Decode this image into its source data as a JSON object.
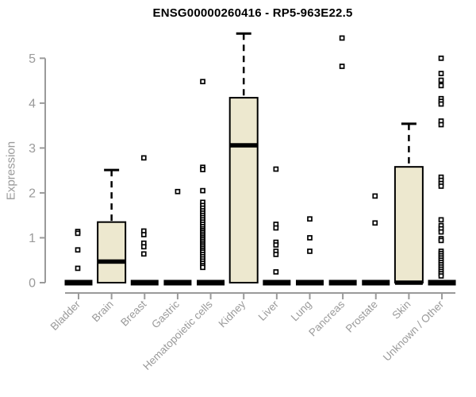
{
  "chart_data": {
    "type": "boxplot",
    "title": "ENSG00000260416 - RP5-963E22.5",
    "ylabel": "Expression",
    "ylim": [
      0,
      5.7
    ],
    "yticks": [
      0,
      1,
      2,
      3,
      4,
      5
    ],
    "grid": false,
    "legend": null,
    "categories": [
      "Bladder",
      "Brain",
      "Breast",
      "Gastric",
      "Hematopoietic cells",
      "Kidney",
      "Liver",
      "Lung",
      "Pancreas",
      "Prostate",
      "Skin",
      "Unknown / Other"
    ],
    "boxes": [
      {
        "category": "Bladder",
        "collapsed": true,
        "median": 0,
        "point_dx": -1,
        "points": [
          1.14,
          1.1,
          0.73,
          0.32
        ]
      },
      {
        "category": "Brain",
        "collapsed": false,
        "q1": 0,
        "median": 0.47,
        "q3": 1.35,
        "whisker_high": 2.51,
        "whisker_low": 0,
        "point_dx": 0,
        "points": []
      },
      {
        "category": "Breast",
        "collapsed": true,
        "median": 0,
        "point_dx": -1,
        "points": [
          2.78,
          1.15,
          1.07,
          0.88,
          0.8,
          0.64
        ]
      },
      {
        "category": "Gastric",
        "collapsed": true,
        "median": 0,
        "point_dx": 0,
        "points": [
          2.03
        ]
      },
      {
        "category": "Hematopoietic cells",
        "collapsed": true,
        "median": 0,
        "point_dx": -10,
        "points": [
          4.48,
          2.57,
          2.52,
          2.05,
          1.79,
          1.72,
          1.66,
          1.6,
          1.55,
          1.5,
          1.45,
          1.4,
          1.35,
          1.3,
          1.25,
          1.2,
          1.16,
          1.12,
          1.08,
          1.04,
          1.0,
          0.96,
          0.92,
          0.88,
          0.84,
          0.8,
          0.76,
          0.72,
          0.68,
          0.63,
          0.58,
          0.53,
          0.48,
          0.43,
          0.38,
          0.34
        ]
      },
      {
        "category": "Kidney",
        "collapsed": false,
        "q1": 0,
        "median": 3.06,
        "q3": 4.12,
        "whisker_high": 5.55,
        "whisker_low": 0,
        "point_dx": 0,
        "points": []
      },
      {
        "category": "Liver",
        "collapsed": true,
        "median": 0,
        "point_dx": -1,
        "points": [
          2.53,
          1.3,
          1.22,
          0.9,
          0.84,
          0.7,
          0.63,
          0.24
        ]
      },
      {
        "category": "Lung",
        "collapsed": true,
        "median": 0,
        "point_dx": 0,
        "points": [
          1.42,
          1.0,
          0.7
        ]
      },
      {
        "category": "Pancreas",
        "collapsed": true,
        "median": 0,
        "point_dx": -1,
        "points": [
          5.45,
          4.82
        ]
      },
      {
        "category": "Prostate",
        "collapsed": true,
        "median": 0,
        "point_dx": -1,
        "points": [
          1.93,
          1.33
        ]
      },
      {
        "category": "Skin",
        "collapsed": false,
        "q1": 0,
        "median": 0,
        "q3": 2.58,
        "whisker_high": 3.54,
        "whisker_low": 0,
        "point_dx": 0,
        "points": []
      },
      {
        "category": "Unknown / Other",
        "collapsed": true,
        "median": 0,
        "point_dx": -1,
        "points": [
          5.0,
          4.66,
          4.51,
          4.39,
          4.1,
          4.04,
          3.98,
          3.6,
          3.52,
          2.35,
          2.28,
          2.21,
          2.15,
          1.4,
          1.27,
          1.2,
          1.13,
          0.98,
          0.94,
          0.7,
          0.65,
          0.6,
          0.55,
          0.5,
          0.45,
          0.4,
          0.35,
          0.3,
          0.25,
          0.2,
          0.15
        ]
      }
    ],
    "colors": {
      "box_fill": "#ede8cf",
      "box_border": "#000000",
      "marker": "#000000",
      "axis": "#9a9a9a",
      "tick_label": "#9a9a9a",
      "title": "#000000",
      "background": "#ffffff"
    }
  }
}
